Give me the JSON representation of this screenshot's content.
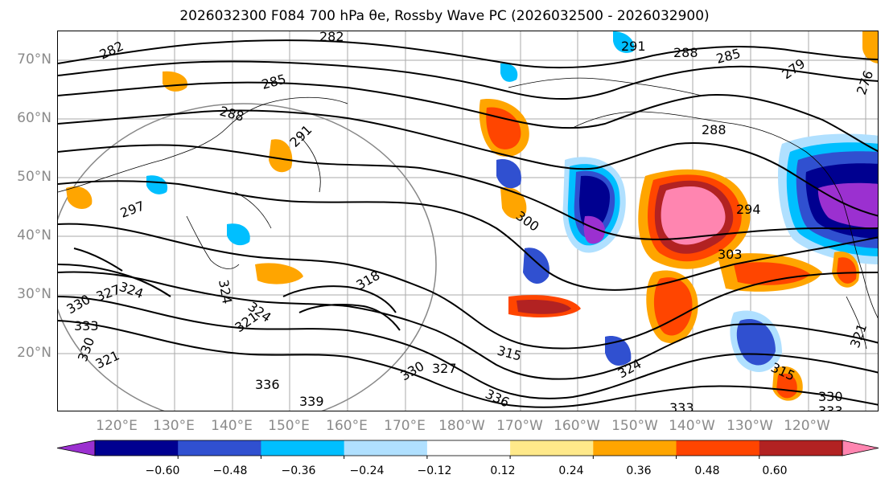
{
  "title": "2026032300 F084 700 hPa θe, Rossby Wave PC (2026032500 - 2026032900)",
  "lat_labels": [
    "70°N",
    "60°N",
    "50°N",
    "40°N",
    "30°N",
    "20°N"
  ],
  "lon_labels": [
    "120°E",
    "130°E",
    "140°E",
    "150°E",
    "160°E",
    "170°E",
    "180°W",
    "170°W",
    "160°W",
    "150°W",
    "140°W",
    "130°W",
    "120°W"
  ],
  "colorbar": {
    "ticks": [
      "−0.60",
      "−0.48",
      "−0.36",
      "−0.24",
      "−0.12",
      "0.12",
      "0.24",
      "0.36",
      "0.48",
      "0.60"
    ],
    "colors": [
      "#9b30d0",
      "#000090",
      "#3050d0",
      "#00bfff",
      "#b0e0ff",
      "#ffffff",
      "#ffe98a",
      "#ffa500",
      "#ff4500",
      "#b22222",
      "#ff85b0"
    ]
  },
  "contour_labels": [
    "282",
    "282",
    "291",
    "288",
    "285",
    "279",
    "276",
    "285",
    "288",
    "291",
    "288",
    "297",
    "300",
    "294",
    "303",
    "330",
    "327",
    "333",
    "330",
    "321",
    "324",
    "324",
    "318",
    "321",
    "330",
    "327",
    "315",
    "336",
    "336",
    "339",
    "324",
    "315",
    "330",
    "333",
    "333",
    "321",
    "324"
  ]
}
